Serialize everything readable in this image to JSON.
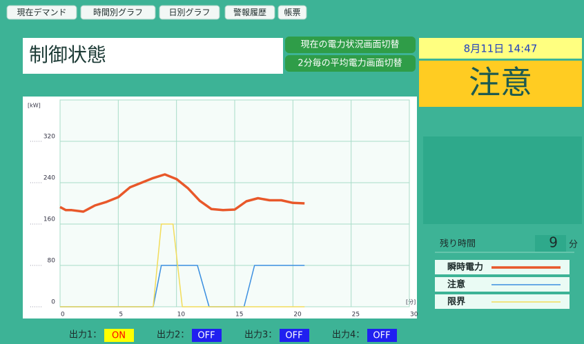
{
  "tabs": [
    "現在デマンド",
    "時間別グラフ",
    "日別グラフ",
    "警報履歴",
    "帳票"
  ],
  "header": {
    "title": "制御状態",
    "buttons": [
      "現在の電力状況画面切替",
      "2分毎の平均電力画面切替"
    ]
  },
  "datetime": "8月11日 14:47",
  "status": "注意",
  "remaining": {
    "label": "残り時間",
    "value": 9,
    "unit": "分"
  },
  "outputs": [
    {
      "label": "出力1：",
      "state": "ON",
      "bg": "#ffff00",
      "fg": "#ff0000"
    },
    {
      "label": "出力2：",
      "state": "OFF",
      "bg": "#2020f0",
      "fg": "#ffffff"
    },
    {
      "label": "出力3：",
      "state": "OFF",
      "bg": "#2020f0",
      "fg": "#ffffff"
    },
    {
      "label": "出力4：",
      "state": "OFF",
      "bg": "#2020f0",
      "fg": "#ffffff"
    }
  ],
  "chart_data": {
    "type": "line",
    "y_unit": "[kW]",
    "x_unit": "[分]",
    "xlim": [
      0,
      30
    ],
    "xticks": [
      0,
      5,
      10,
      15,
      20,
      25,
      30
    ],
    "ylim": [
      0,
      400
    ],
    "yticks": [
      0,
      80,
      160,
      240,
      320
    ],
    "grid": true,
    "series": [
      {
        "name": "瞬時電力",
        "color": "#e8582a",
        "width": 3.5,
        "x": [
          0,
          0.5,
          1,
          2,
          3,
          4,
          5,
          6,
          7,
          8,
          9,
          10,
          11,
          12,
          13,
          14,
          15,
          16,
          17,
          18,
          19,
          20,
          21
        ],
        "values": [
          193,
          187,
          187,
          184,
          196,
          203,
          212,
          231,
          240,
          249,
          256,
          247,
          229,
          205,
          189,
          187,
          188,
          204,
          210,
          206,
          206,
          201,
          200
        ]
      },
      {
        "name": "注意",
        "color": "#3a8ee0",
        "width": 1.5,
        "x": [
          0,
          8,
          8.7,
          11.8,
          12.8,
          15.8,
          16.7,
          21
        ],
        "values": [
          0,
          0,
          80,
          80,
          0,
          0,
          80,
          80
        ]
      },
      {
        "name": "限界",
        "color": "#f2dc5a",
        "width": 1.5,
        "x": [
          0,
          8,
          8.7,
          9.7,
          10.5,
          21
        ],
        "values": [
          0,
          0,
          160,
          160,
          0,
          0
        ]
      }
    ]
  }
}
